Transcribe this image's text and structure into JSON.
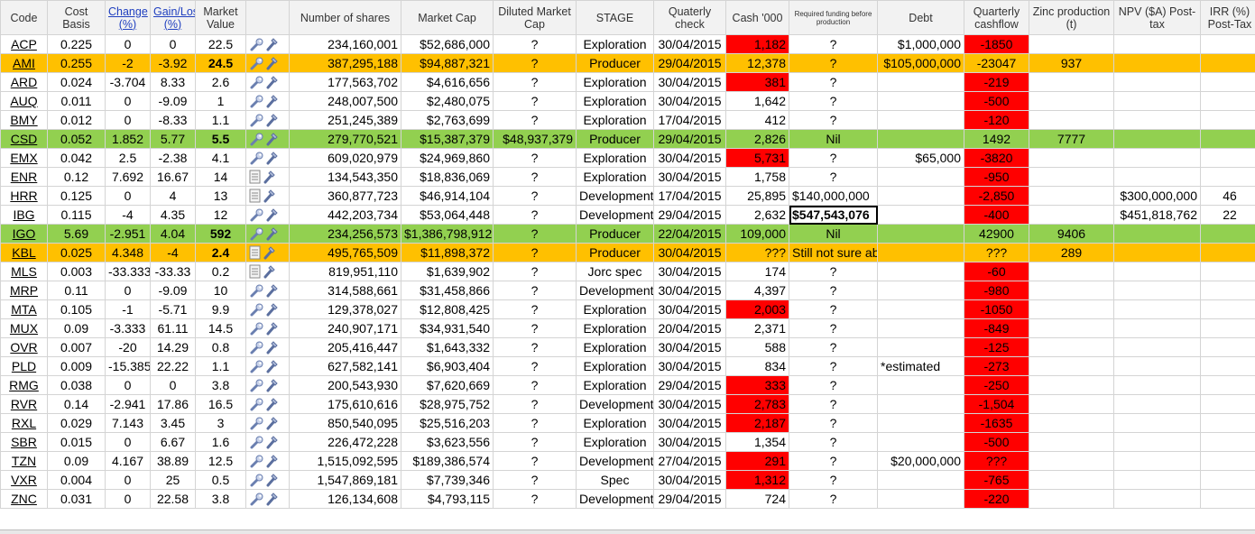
{
  "columns": [
    "Code",
    "Cost Basis",
    "Change (%)",
    "Gain/Loss (%)",
    "Market Value",
    "",
    "Number of shares",
    "Market Cap",
    "Diluted Market Cap",
    "STAGE",
    "Quaterly check",
    "Cash '000",
    "Required funding before production",
    "Debt",
    "Quarterly cashflow",
    "Zinc production (t)",
    "NPV ($A) Post-tax",
    "IRR (%) Post-Tax"
  ],
  "colors": {
    "orange": "#ffc000",
    "green": "#92d050",
    "red": "#ff0000",
    "link": "#1f3fbf"
  },
  "icons": {
    "document": "document-icon",
    "wrench": "wrench-icon"
  },
  "rows": [
    {
      "code": "ACP",
      "cost": "0.225",
      "change": "0",
      "gain": "0",
      "mv": "22.5",
      "shares": "234,160,001",
      "cap": "$52,686,000",
      "dil": "?",
      "stage": "Exploration",
      "qc": "30/04/2015",
      "cash": "1,182",
      "req": "?",
      "debt": "$1,000,000",
      "qcf": "-1850",
      "zinc": "",
      "npv": "",
      "irr": "",
      "hl": "",
      "cashRed": true,
      "icon": "wrench"
    },
    {
      "code": "AMI",
      "cost": "0.255",
      "change": "-2",
      "gain": "-3.92",
      "mv": "24.5",
      "shares": "387,295,188",
      "cap": "$94,887,321",
      "dil": "?",
      "stage": "Producer",
      "qc": "29/04/2015",
      "cash": "12,378",
      "req": "?",
      "debt": "$105,000,000",
      "qcf": "-23047",
      "zinc": "937",
      "npv": "",
      "irr": "",
      "hl": "orange",
      "cashRed": false,
      "icon": "wrench"
    },
    {
      "code": "ARD",
      "cost": "0.024",
      "change": "-3.704",
      "gain": "8.33",
      "mv": "2.6",
      "shares": "177,563,702",
      "cap": "$4,616,656",
      "dil": "?",
      "stage": "Exploration",
      "qc": "30/04/2015",
      "cash": "381",
      "req": "?",
      "debt": "",
      "qcf": "-219",
      "zinc": "",
      "npv": "",
      "irr": "",
      "hl": "",
      "cashRed": true,
      "icon": "wrench"
    },
    {
      "code": "AUQ",
      "cost": "0.011",
      "change": "0",
      "gain": "-9.09",
      "mv": "1",
      "shares": "248,007,500",
      "cap": "$2,480,075",
      "dil": "?",
      "stage": "Exploration",
      "qc": "30/04/2015",
      "cash": "1,642",
      "req": "?",
      "debt": "",
      "qcf": "-500",
      "zinc": "",
      "npv": "",
      "irr": "",
      "hl": "",
      "cashRed": false,
      "icon": "wrench"
    },
    {
      "code": "BMY",
      "cost": "0.012",
      "change": "0",
      "gain": "-8.33",
      "mv": "1.1",
      "shares": "251,245,389",
      "cap": "$2,763,699",
      "dil": "?",
      "stage": "Exploration",
      "qc": "17/04/2015",
      "cash": "412",
      "req": "?",
      "debt": "",
      "qcf": "-120",
      "zinc": "",
      "npv": "",
      "irr": "",
      "hl": "",
      "cashRed": false,
      "icon": "wrench"
    },
    {
      "code": "CSD",
      "cost": "0.052",
      "change": "1.852",
      "gain": "5.77",
      "mv": "5.5",
      "shares": "279,770,521",
      "cap": "$15,387,379",
      "dil": "$48,937,379",
      "stage": "Producer",
      "qc": "29/04/2015",
      "cash": "2,826",
      "req": "Nil",
      "debt": "",
      "qcf": "1492",
      "zinc": "7777",
      "npv": "",
      "irr": "",
      "hl": "green",
      "cashRed": false,
      "icon": "wrench"
    },
    {
      "code": "EMX",
      "cost": "0.042",
      "change": "2.5",
      "gain": "-2.38",
      "mv": "4.1",
      "shares": "609,020,979",
      "cap": "$24,969,860",
      "dil": "?",
      "stage": "Exploration",
      "qc": "30/04/2015",
      "cash": "5,731",
      "req": "?",
      "debt": "$65,000",
      "qcf": "-3820",
      "zinc": "",
      "npv": "",
      "irr": "",
      "hl": "",
      "cashRed": true,
      "icon": "wrench"
    },
    {
      "code": "ENR",
      "cost": "0.12",
      "change": "7.692",
      "gain": "16.67",
      "mv": "14",
      "shares": "134,543,350",
      "cap": "$18,836,069",
      "dil": "?",
      "stage": "Exploration",
      "qc": "30/04/2015",
      "cash": "1,758",
      "req": "?",
      "debt": "",
      "qcf": "-950",
      "zinc": "",
      "npv": "",
      "irr": "",
      "hl": "",
      "cashRed": false,
      "icon": "document"
    },
    {
      "code": "HRR",
      "cost": "0.125",
      "change": "0",
      "gain": "4",
      "mv": "13",
      "shares": "360,877,723",
      "cap": "$46,914,104",
      "dil": "?",
      "stage": "Development",
      "qc": "17/04/2015",
      "cash": "25,895",
      "req": "$140,000,000",
      "debt": "",
      "qcf": "-2,850",
      "zinc": "",
      "npv": "$300,000,000",
      "irr": "46",
      "hl": "",
      "cashRed": false,
      "icon": "document"
    },
    {
      "code": "IBG",
      "cost": "0.115",
      "change": "-4",
      "gain": "4.35",
      "mv": "12",
      "shares": "442,203,734",
      "cap": "$53,064,448",
      "dil": "?",
      "stage": "Development",
      "qc": "29/04/2015",
      "cash": "2,632",
      "req": "$547,543,076",
      "debt": "",
      "qcf": "-400",
      "zinc": "",
      "npv": "$451,818,762",
      "irr": "22",
      "hl": "",
      "cashRed": false,
      "icon": "wrench",
      "reqBoxed": true
    },
    {
      "code": "IGO",
      "cost": "5.69",
      "change": "-2.951",
      "gain": "4.04",
      "mv": "592",
      "shares": "234,256,573",
      "cap": "$1,386,798,912",
      "dil": "?",
      "stage": "Producer",
      "qc": "22/04/2015",
      "cash": "109,000",
      "req": "Nil",
      "debt": "",
      "qcf": "42900",
      "zinc": "9406",
      "npv": "",
      "irr": "",
      "hl": "green",
      "cashRed": false,
      "icon": "wrench"
    },
    {
      "code": "KBL",
      "cost": "0.025",
      "change": "4.348",
      "gain": "-4",
      "mv": "2.4",
      "shares": "495,765,509",
      "cap": "$11,898,372",
      "dil": "?",
      "stage": "Producer",
      "qc": "30/04/2015",
      "cash": "???",
      "req": "Still not sure about this one.",
      "debt": "",
      "qcf": "???",
      "zinc": "289",
      "npv": "",
      "irr": "",
      "hl": "orange",
      "cashRed": false,
      "icon": "document"
    },
    {
      "code": "MLS",
      "cost": "0.003",
      "change": "-33.333",
      "gain": "-33.33",
      "mv": "0.2",
      "shares": "819,951,110",
      "cap": "$1,639,902",
      "dil": "?",
      "stage": "Jorc spec",
      "qc": "30/04/2015",
      "cash": "174",
      "req": "?",
      "debt": "",
      "qcf": "-60",
      "zinc": "",
      "npv": "",
      "irr": "",
      "hl": "",
      "cashRed": false,
      "icon": "document"
    },
    {
      "code": "MRP",
      "cost": "0.11",
      "change": "0",
      "gain": "-9.09",
      "mv": "10",
      "shares": "314,588,661",
      "cap": "$31,458,866",
      "dil": "?",
      "stage": "Development",
      "qc": "30/04/2015",
      "cash": "4,397",
      "req": "?",
      "debt": "",
      "qcf": "-980",
      "zinc": "",
      "npv": "",
      "irr": "",
      "hl": "",
      "cashRed": false,
      "icon": "wrench"
    },
    {
      "code": "MTA",
      "cost": "0.105",
      "change": "-1",
      "gain": "-5.71",
      "mv": "9.9",
      "shares": "129,378,027",
      "cap": "$12,808,425",
      "dil": "?",
      "stage": "Exploration",
      "qc": "30/04/2015",
      "cash": "2,003",
      "req": "?",
      "debt": "",
      "qcf": "-1050",
      "zinc": "",
      "npv": "",
      "irr": "",
      "hl": "",
      "cashRed": true,
      "icon": "wrench"
    },
    {
      "code": "MUX",
      "cost": "0.09",
      "change": "-3.333",
      "gain": "61.11",
      "mv": "14.5",
      "shares": "240,907,171",
      "cap": "$34,931,540",
      "dil": "?",
      "stage": "Exploration",
      "qc": "20/04/2015",
      "cash": "2,371",
      "req": "?",
      "debt": "",
      "qcf": "-849",
      "zinc": "",
      "npv": "",
      "irr": "",
      "hl": "",
      "cashRed": false,
      "icon": "wrench"
    },
    {
      "code": "OVR",
      "cost": "0.007",
      "change": "-20",
      "gain": "14.29",
      "mv": "0.8",
      "shares": "205,416,447",
      "cap": "$1,643,332",
      "dil": "?",
      "stage": "Exploration",
      "qc": "30/04/2015",
      "cash": "588",
      "req": "?",
      "debt": "",
      "qcf": "-125",
      "zinc": "",
      "npv": "",
      "irr": "",
      "hl": "",
      "cashRed": false,
      "icon": "wrench"
    },
    {
      "code": "PLD",
      "cost": "0.009",
      "change": "-15.385",
      "gain": "22.22",
      "mv": "1.1",
      "shares": "627,582,141",
      "cap": "$6,903,404",
      "dil": "?",
      "stage": "Exploration",
      "qc": "30/04/2015",
      "cash": "834",
      "req": "?",
      "debt": "*estimated",
      "qcf": "-273",
      "zinc": "",
      "npv": "",
      "irr": "",
      "hl": "",
      "cashRed": false,
      "icon": "wrench",
      "debtLeft": true
    },
    {
      "code": "RMG",
      "cost": "0.038",
      "change": "0",
      "gain": "0",
      "mv": "3.8",
      "shares": "200,543,930",
      "cap": "$7,620,669",
      "dil": "?",
      "stage": "Exploration",
      "qc": "29/04/2015",
      "cash": "333",
      "req": "?",
      "debt": "",
      "qcf": "-250",
      "zinc": "",
      "npv": "",
      "irr": "",
      "hl": "",
      "cashRed": true,
      "icon": "wrench"
    },
    {
      "code": "RVR",
      "cost": "0.14",
      "change": "-2.941",
      "gain": "17.86",
      "mv": "16.5",
      "shares": "175,610,616",
      "cap": "$28,975,752",
      "dil": "?",
      "stage": "Development",
      "qc": "30/04/2015",
      "cash": "2,783",
      "req": "?",
      "debt": "",
      "qcf": "-1,504",
      "zinc": "",
      "npv": "",
      "irr": "",
      "hl": "",
      "cashRed": true,
      "icon": "wrench",
      "sharesGrey": true
    },
    {
      "code": "RXL",
      "cost": "0.029",
      "change": "7.143",
      "gain": "3.45",
      "mv": "3",
      "shares": "850,540,095",
      "cap": "$25,516,203",
      "dil": "?",
      "stage": "Exploration",
      "qc": "30/04/2015",
      "cash": "2,187",
      "req": "?",
      "debt": "",
      "qcf": "-1635",
      "zinc": "",
      "npv": "",
      "irr": "",
      "hl": "",
      "cashRed": true,
      "icon": "wrench"
    },
    {
      "code": "SBR",
      "cost": "0.015",
      "change": "0",
      "gain": "6.67",
      "mv": "1.6",
      "shares": "226,472,228",
      "cap": "$3,623,556",
      "dil": "?",
      "stage": "Exploration",
      "qc": "30/04/2015",
      "cash": "1,354",
      "req": "?",
      "debt": "",
      "qcf": "-500",
      "zinc": "",
      "npv": "",
      "irr": "",
      "hl": "",
      "cashRed": false,
      "icon": "wrench"
    },
    {
      "code": "TZN",
      "cost": "0.09",
      "change": "4.167",
      "gain": "38.89",
      "mv": "12.5",
      "shares": "1,515,092,595",
      "cap": "$189,386,574",
      "dil": "?",
      "stage": "Development",
      "qc": "27/04/2015",
      "cash": "291",
      "req": "?",
      "debt": "$20,000,000",
      "qcf": "???",
      "zinc": "",
      "npv": "",
      "irr": "",
      "hl": "",
      "cashRed": true,
      "icon": "wrench"
    },
    {
      "code": "VXR",
      "cost": "0.004",
      "change": "0",
      "gain": "25",
      "mv": "0.5",
      "shares": "1,547,869,181",
      "cap": "$7,739,346",
      "dil": "?",
      "stage": "Spec",
      "qc": "30/04/2015",
      "cash": "1,312",
      "req": "?",
      "debt": "",
      "qcf": "-765",
      "zinc": "",
      "npv": "",
      "irr": "",
      "hl": "",
      "cashRed": true,
      "icon": "wrench"
    },
    {
      "code": "ZNC",
      "cost": "0.031",
      "change": "0",
      "gain": "22.58",
      "mv": "3.8",
      "shares": "126,134,608",
      "cap": "$4,793,115",
      "dil": "?",
      "stage": "Development",
      "qc": "29/04/2015",
      "cash": "724",
      "req": "?",
      "debt": "",
      "qcf": "-220",
      "zinc": "",
      "npv": "",
      "irr": "",
      "hl": "",
      "cashRed": false,
      "icon": "wrench"
    }
  ]
}
